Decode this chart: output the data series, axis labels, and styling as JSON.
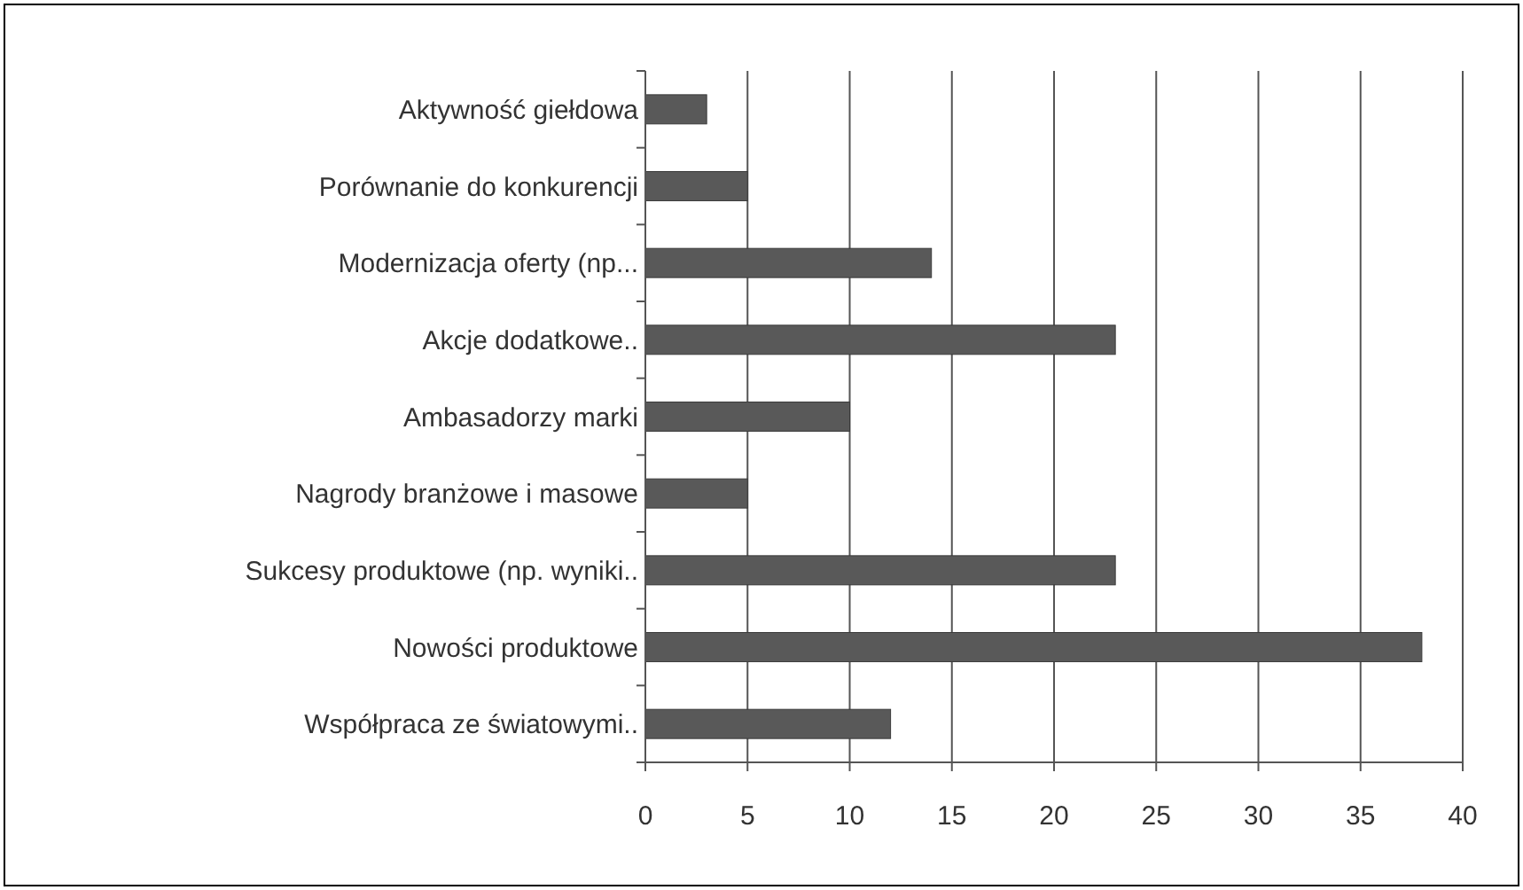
{
  "chart_data": {
    "type": "bar",
    "orientation": "horizontal",
    "categories": [
      "Aktywność giełdowa",
      "Porównanie do konkurencji",
      "Modernizacja oferty (np...",
      "Akcje dodatkowe..",
      "Ambasadorzy marki",
      "Nagrody branżowe i masowe",
      "Sukcesy produktowe (np. wyniki..",
      "Nowości produktowe",
      "Współpraca ze światowymi.."
    ],
    "values": [
      3,
      5,
      14,
      23,
      10,
      5,
      23,
      38,
      12
    ],
    "color": "#595959",
    "xlim": [
      0,
      40
    ],
    "xticks": [
      0,
      5,
      10,
      15,
      20,
      25,
      30,
      35,
      40
    ],
    "grid": "x"
  }
}
